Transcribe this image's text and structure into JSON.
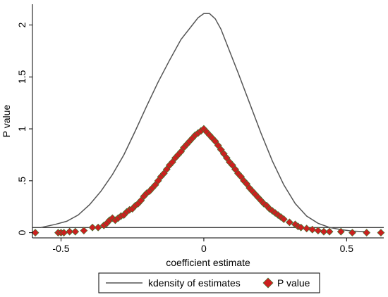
{
  "chart_data": {
    "type": "scatter",
    "xlabel": "coefficient estimate",
    "ylabel": "P value",
    "xlim": [
      -0.6,
      0.63
    ],
    "ylim": [
      -0.05,
      2.2
    ],
    "xticks": [
      -0.5,
      0,
      0.5
    ],
    "xtick_labels": [
      "-0.5",
      "0",
      "0.5"
    ],
    "yticks": [
      0,
      0.5,
      1,
      1.5,
      2
    ],
    "ytick_labels": [
      "0",
      ".5",
      "1",
      "1.5",
      "2"
    ],
    "reference_line": {
      "y": 0.05
    },
    "legend_position": "bottom",
    "series": [
      {
        "name": "kdensity of estimates",
        "type": "line",
        "color": "#555555",
        "x": [
          -0.57,
          -0.52,
          -0.48,
          -0.44,
          -0.4,
          -0.36,
          -0.32,
          -0.28,
          -0.24,
          -0.2,
          -0.16,
          -0.12,
          -0.08,
          -0.04,
          -0.02,
          0.0,
          0.02,
          0.04,
          0.06,
          0.08,
          0.12,
          0.16,
          0.2,
          0.24,
          0.28,
          0.32,
          0.36,
          0.4,
          0.44,
          0.48,
          0.52,
          0.57
        ],
        "y": [
          0.05,
          0.08,
          0.11,
          0.17,
          0.27,
          0.4,
          0.56,
          0.75,
          0.98,
          1.22,
          1.45,
          1.66,
          1.86,
          2.0,
          2.07,
          2.11,
          2.11,
          2.06,
          1.96,
          1.82,
          1.54,
          1.25,
          0.96,
          0.69,
          0.46,
          0.28,
          0.16,
          0.09,
          0.05,
          0.03,
          0.015,
          0.01
        ]
      },
      {
        "name": "P value",
        "type": "scatter",
        "color": "#cc1f1f",
        "edge_color": "#2e7d32",
        "x": [
          -0.59,
          -0.51,
          -0.5,
          -0.49,
          -0.47,
          -0.45,
          -0.42,
          -0.39,
          -0.37,
          -0.35,
          -0.34,
          -0.33,
          -0.32,
          -0.31,
          -0.3,
          -0.29,
          -0.28,
          -0.27,
          -0.26,
          -0.25,
          -0.24,
          -0.23,
          -0.22,
          -0.21,
          -0.2,
          -0.19,
          -0.18,
          -0.17,
          -0.16,
          -0.15,
          -0.14,
          -0.13,
          -0.12,
          -0.11,
          -0.1,
          -0.09,
          -0.08,
          -0.07,
          -0.06,
          -0.05,
          -0.04,
          -0.03,
          -0.02,
          -0.01,
          0.0,
          0.01,
          0.02,
          0.03,
          0.04,
          0.05,
          0.06,
          0.07,
          0.08,
          0.09,
          0.1,
          0.11,
          0.12,
          0.13,
          0.14,
          0.15,
          0.16,
          0.17,
          0.18,
          0.19,
          0.2,
          0.21,
          0.22,
          0.23,
          0.24,
          0.25,
          0.26,
          0.27,
          0.28,
          0.3,
          0.32,
          0.33,
          0.34,
          0.36,
          0.38,
          0.4,
          0.42,
          0.44,
          0.48,
          0.52,
          0.57,
          0.62
        ],
        "y": [
          0.0,
          0.0,
          0.0,
          0.0,
          0.01,
          0.01,
          0.02,
          0.05,
          0.05,
          0.07,
          0.09,
          0.12,
          0.14,
          0.12,
          0.14,
          0.16,
          0.17,
          0.2,
          0.22,
          0.23,
          0.26,
          0.28,
          0.31,
          0.35,
          0.38,
          0.4,
          0.43,
          0.46,
          0.5,
          0.54,
          0.57,
          0.61,
          0.65,
          0.68,
          0.72,
          0.75,
          0.78,
          0.82,
          0.85,
          0.88,
          0.91,
          0.94,
          0.96,
          0.98,
          1.0,
          0.97,
          0.94,
          0.91,
          0.88,
          0.84,
          0.8,
          0.76,
          0.72,
          0.68,
          0.65,
          0.61,
          0.57,
          0.54,
          0.5,
          0.47,
          0.43,
          0.4,
          0.37,
          0.34,
          0.31,
          0.28,
          0.26,
          0.23,
          0.21,
          0.19,
          0.17,
          0.15,
          0.13,
          0.1,
          0.08,
          0.06,
          0.05,
          0.04,
          0.03,
          0.02,
          0.01,
          0.01,
          0.01,
          0.0,
          0.0,
          0.0
        ]
      }
    ]
  }
}
